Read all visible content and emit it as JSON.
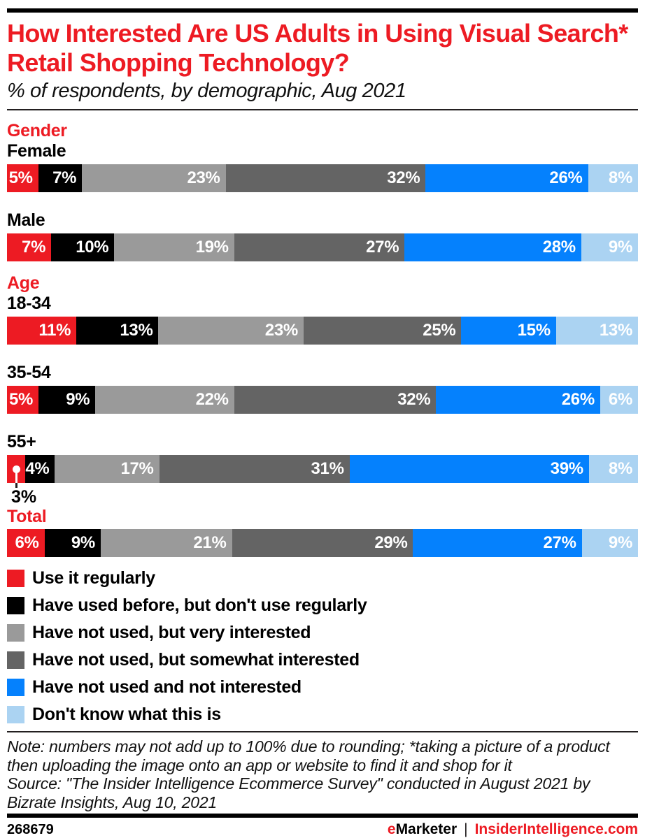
{
  "header": {
    "title": "How Interested Are US Adults in Using Visual Search* Retail Shopping Technology?",
    "subtitle": "% of respondents, by demographic, Aug 2021"
  },
  "colors": {
    "accent_red": "#ed1b23",
    "rule_dark": "#231f20",
    "bar_label_text": "#ffffff"
  },
  "chart_data": {
    "type": "bar",
    "variant": "stacked-horizontal",
    "unit": "%",
    "value_suffix": "%",
    "series": [
      {
        "name": "Use it regularly",
        "color": "#ed1b23"
      },
      {
        "name": "Have used before, but don't use regularly",
        "color": "#000000"
      },
      {
        "name": "Have not used, but very interested",
        "color": "#9a9a9a"
      },
      {
        "name": "Have not used, but somewhat interested",
        "color": "#646464"
      },
      {
        "name": "Have not used and not interested",
        "color": "#0581fd"
      },
      {
        "name": "Don't know what this is",
        "color": "#abd3f2"
      }
    ],
    "groups": [
      {
        "section": "Gender",
        "rows": [
          {
            "label": "Female",
            "values": [
              5,
              7,
              23,
              32,
              26,
              8
            ]
          },
          {
            "label": "Male",
            "values": [
              7,
              10,
              19,
              27,
              28,
              9
            ]
          }
        ]
      },
      {
        "section": "Age",
        "rows": [
          {
            "label": "18-34",
            "values": [
              11,
              13,
              23,
              25,
              15,
              13
            ]
          },
          {
            "label": "35-54",
            "values": [
              5,
              9,
              22,
              32,
              26,
              6
            ]
          },
          {
            "label": "55+",
            "values": [
              3,
              4,
              17,
              31,
              39,
              8
            ],
            "callout_index": 0
          }
        ]
      },
      {
        "section": "Total",
        "rows": [
          {
            "label": "",
            "values": [
              6,
              9,
              21,
              29,
              27,
              9
            ]
          }
        ]
      }
    ]
  },
  "footnote": {
    "note": "Note: numbers may not add up to 100% due to rounding; *taking a picture of a product then uploading the image onto an app or website to find it and shop for it",
    "source": "Source: \"The Insider Intelligence Ecommerce Survey\" conducted in August 2021 by Bizrate Insights, Aug 10, 2021"
  },
  "footer": {
    "chart_id": "268679",
    "brand_prefix": "e",
    "brand_suffix": "Marketer",
    "separator": "|",
    "website": "InsiderIntelligence.com"
  }
}
